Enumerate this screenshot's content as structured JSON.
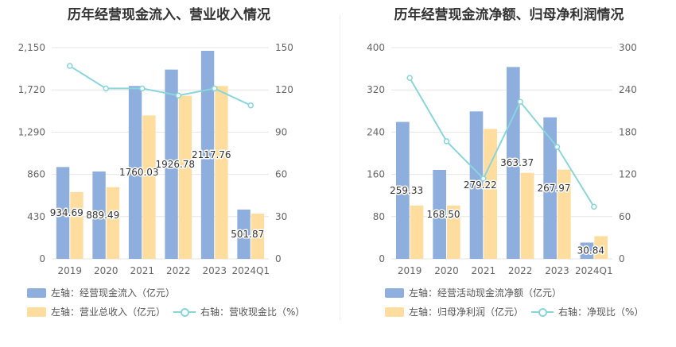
{
  "colors": {
    "bar_primary": "#8eaedd",
    "bar_secondary": "#fedd9f",
    "line": "#88d6dc",
    "grid": "#e6e6e6",
    "axis_text": "#666666"
  },
  "left": {
    "title": "历年经营现金流入、营业收入情况",
    "legend": {
      "bar1": "左轴：经营现金流入（亿元）",
      "bar2": "左轴：营业总收入（亿元）",
      "line": "右轴：营收现金比（%）"
    }
  },
  "right": {
    "title": "历年经营现金流净额、归母净利润情况",
    "legend": {
      "bar1": "左轴：经营活动现金流净额（亿元）",
      "bar2": "左轴：归母净利润（亿元）",
      "line": "右轴：净现比（%）"
    }
  },
  "chart_data": [
    {
      "type": "bar",
      "title": "历年经营现金流入、营业收入情况",
      "categories": [
        "2019",
        "2020",
        "2021",
        "2022",
        "2023",
        "2024Q1"
      ],
      "left_axis": {
        "ticks": [
          "0",
          "430",
          "860",
          "1,290",
          "1,720",
          "2,150"
        ],
        "ylim": [
          0,
          2150
        ]
      },
      "right_axis": {
        "ticks": [
          "0",
          "30",
          "60",
          "90",
          "120",
          "150"
        ],
        "ylim": [
          0,
          150
        ]
      },
      "series": [
        {
          "name": "左轴：经营现金流入（亿元）",
          "axis": "left",
          "values": [
            934.69,
            889.49,
            1760.03,
            1926.78,
            2117.76,
            501.87
          ],
          "labels": [
            "934.69",
            "889.49",
            "1760.03",
            "1926.78",
            "2117.76",
            "501.87"
          ]
        },
        {
          "name": "左轴：营业总收入（亿元）",
          "axis": "left",
          "values": [
            680,
            730,
            1460,
            1660,
            1760,
            460
          ]
        },
        {
          "name": "右轴：营收现金比（%）",
          "axis": "right",
          "type": "line",
          "values": [
            137,
            121,
            121,
            116,
            121,
            109
          ]
        }
      ]
    },
    {
      "type": "bar",
      "title": "历年经营现金流净额、归母净利润情况",
      "categories": [
        "2019",
        "2020",
        "2021",
        "2022",
        "2023",
        "2024Q1"
      ],
      "left_axis": {
        "ticks": [
          "0",
          "80",
          "160",
          "240",
          "320",
          "400"
        ],
        "ylim": [
          0,
          400
        ]
      },
      "right_axis": {
        "ticks": [
          "0",
          "60",
          "120",
          "180",
          "240",
          "300"
        ],
        "ylim": [
          0,
          300
        ]
      },
      "series": [
        {
          "name": "左轴：经营活动现金流净额（亿元）",
          "axis": "left",
          "values": [
            259.33,
            168.5,
            279.22,
            363.37,
            267.97,
            30.84
          ],
          "labels": [
            "259.33",
            "168.50",
            "279.22",
            "363.37",
            "267.97",
            "30.84"
          ]
        },
        {
          "name": "左轴：归母净利润（亿元）",
          "axis": "left",
          "values": [
            101,
            101,
            246,
            163,
            169,
            43
          ]
        },
        {
          "name": "右轴：净现比（%）",
          "axis": "right",
          "type": "line",
          "values": [
            257,
            167,
            114,
            223,
            159,
            74
          ]
        }
      ]
    }
  ]
}
